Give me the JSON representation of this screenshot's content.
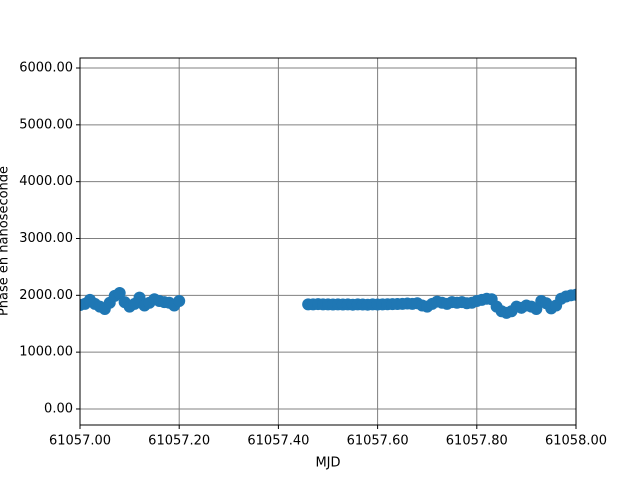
{
  "chart_data": {
    "type": "scatter",
    "x_label": "MJD",
    "y_label": "Phase en nanoseconde",
    "color": "#1f77b4",
    "grid": true,
    "xlim": [
      61057.0,
      61058.0
    ],
    "xticks": [
      {
        "value": 61057.0,
        "label": "61057.00"
      },
      {
        "value": 61057.2,
        "label": "61057.20"
      },
      {
        "value": 61057.4,
        "label": "61057.40"
      },
      {
        "value": 61057.6,
        "label": "61057.60"
      },
      {
        "value": 61057.8,
        "label": "61057.80"
      },
      {
        "value": 61058.0,
        "label": "61058.00"
      }
    ],
    "ylim": [
      -282,
      6176
    ],
    "yticks": [
      {
        "value": 0,
        "label": "0.00"
      },
      {
        "value": 1000,
        "label": "1000.00"
      },
      {
        "value": 2000,
        "label": "2000.00"
      },
      {
        "value": 3000,
        "label": "3000.00"
      },
      {
        "value": 4000,
        "label": "4000.00"
      },
      {
        "value": 5000,
        "label": "5000.00"
      },
      {
        "value": 6000,
        "label": "6000.00"
      }
    ],
    "x": [
      61057.0,
      61057.01,
      61057.02,
      61057.03,
      61057.04,
      61057.05,
      61057.06,
      61057.07,
      61057.08,
      61057.09,
      61057.1,
      61057.11,
      61057.12,
      61057.13,
      61057.14,
      61057.15,
      61057.16,
      61057.17,
      61057.18,
      61057.19,
      61057.2,
      61057.46,
      61057.47,
      61057.48,
      61057.49,
      61057.5,
      61057.51,
      61057.52,
      61057.53,
      61057.54,
      61057.55,
      61057.56,
      61057.57,
      61057.58,
      61057.59,
      61057.6,
      61057.61,
      61057.62,
      61057.63,
      61057.64,
      61057.65,
      61057.66,
      61057.67,
      61057.68,
      61057.69,
      61057.7,
      61057.71,
      61057.72,
      61057.73,
      61057.74,
      61057.75,
      61057.76,
      61057.77,
      61057.78,
      61057.79,
      61057.8,
      61057.81,
      61057.82,
      61057.83,
      61057.84,
      61057.85,
      61057.86,
      61057.87,
      61057.88,
      61057.89,
      61057.9,
      61057.91,
      61057.92,
      61057.93,
      61057.94,
      61057.95,
      61057.96,
      61057.97,
      61057.98,
      61057.99,
      61058.0
    ],
    "values": [
      1830,
      1850,
      1920,
      1850,
      1800,
      1760,
      1870,
      1990,
      2040,
      1880,
      1800,
      1850,
      1960,
      1820,
      1870,
      1930,
      1900,
      1880,
      1870,
      1820,
      1900,
      1840,
      1840,
      1845,
      1840,
      1840,
      1838,
      1840,
      1838,
      1840,
      1835,
      1840,
      1838,
      1835,
      1840,
      1838,
      1840,
      1842,
      1845,
      1848,
      1850,
      1855,
      1850,
      1860,
      1820,
      1800,
      1850,
      1890,
      1870,
      1850,
      1880,
      1870,
      1880,
      1860,
      1870,
      1900,
      1920,
      1940,
      1930,
      1800,
      1720,
      1690,
      1720,
      1800,
      1780,
      1820,
      1800,
      1760,
      1900,
      1860,
      1770,
      1820,
      1940,
      1980,
      2000,
      2010
    ]
  }
}
